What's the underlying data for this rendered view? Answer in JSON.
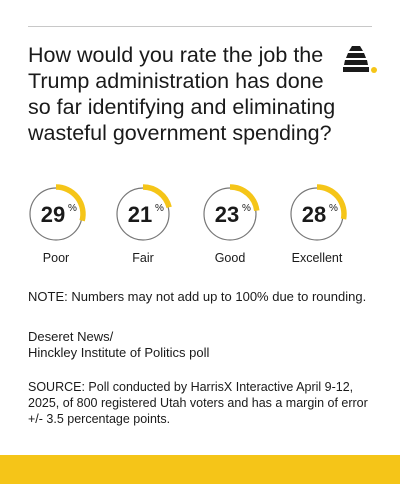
{
  "title": "How would you rate the job the Trump administration has done so far identifying and eliminating wasteful government spending?",
  "colors": {
    "accent": "#f5c518",
    "ring": "#777777",
    "text": "#1a1a1a",
    "rule": "#c8c8c8"
  },
  "chart_data": {
    "type": "pie",
    "unit": "%",
    "categories": [
      "Poor",
      "Fair",
      "Good",
      "Excellent"
    ],
    "values": [
      29,
      21,
      23,
      28
    ]
  },
  "note": "NOTE: Numbers may not add up to 100% due to rounding.",
  "credit": {
    "line1": "Deseret News/",
    "line2": "Hinckley Institute of Politics poll"
  },
  "source": "SOURCE: Poll conducted by HarrisX Interactive April 9-12, 2025, of 800 registered Utah voters and has a margin of error +/- 3.5 percentage points.",
  "logo_icon": "beehive-icon"
}
